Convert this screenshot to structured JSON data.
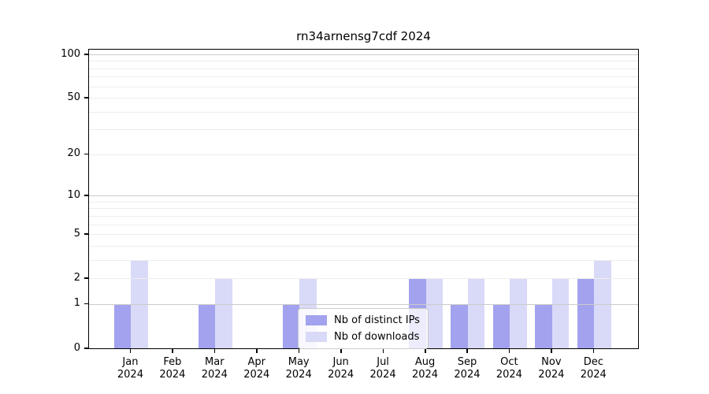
{
  "chart_data": {
    "type": "bar",
    "title": "rn34arnensg7cdf 2024",
    "categories": [
      "Jan 2024",
      "Feb 2024",
      "Mar 2024",
      "Apr 2024",
      "May 2024",
      "Jun 2024",
      "Jul 2024",
      "Aug 2024",
      "Sep 2024",
      "Oct 2024",
      "Nov 2024",
      "Dec 2024"
    ],
    "series": [
      {
        "name": "Nb of distinct IPs",
        "color": "#a2a2ee",
        "values": [
          1,
          0,
          1,
          0,
          1,
          0,
          0,
          2,
          1,
          1,
          1,
          2
        ]
      },
      {
        "name": "Nb of downloads",
        "color": "#d9d9f8",
        "values": [
          3,
          0,
          2,
          0,
          2,
          0,
          0,
          2,
          2,
          2,
          2,
          3
        ]
      }
    ],
    "xlabel": "",
    "ylabel": "",
    "yticks": [
      0,
      1,
      2,
      5,
      10,
      20,
      50,
      100
    ],
    "y_minor_gridlines": [
      2,
      3,
      4,
      5,
      6,
      7,
      8,
      9,
      20,
      30,
      40,
      50,
      60,
      70,
      80,
      90
    ],
    "y_major_gridlines": [
      1,
      10,
      100
    ],
    "yscale": "log(1+x)",
    "ylim": [
      0,
      110
    ],
    "grid": "horizontal",
    "legend_position": "inside lower-center",
    "colors": {
      "major_grid": "#cbcbcb",
      "minor_grid": "#ededed",
      "spine": "#000000",
      "background": "#ffffff"
    }
  }
}
